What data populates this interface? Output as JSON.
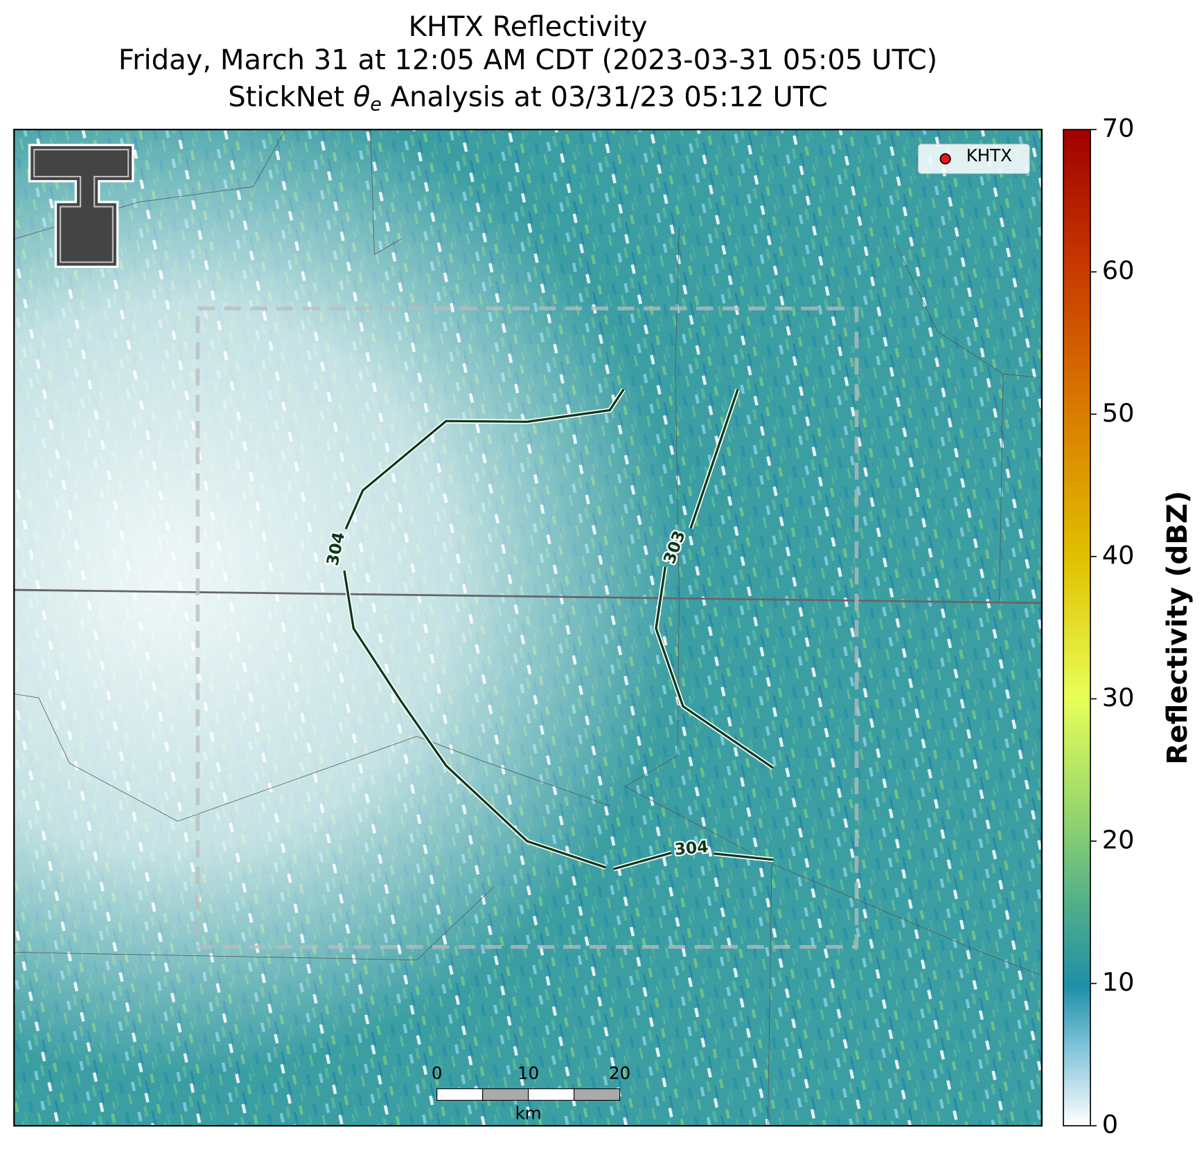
{
  "title": {
    "line1": "KHTX Reflectivity",
    "line2": "Friday, March 31 at 12:05 AM CDT (2023-03-31 05:05 UTC)",
    "line3": {
      "before": "StickNet",
      "symbol": "θ",
      "subscript": "e",
      "after": "Analysis at 03/31/23 05:12 UTC"
    }
  },
  "legend": {
    "label": "KHTX",
    "color": "#e8141c",
    "loc": "upper right"
  },
  "colorbar": {
    "label": "Reflectivity (dBZ)",
    "lim": [
      0,
      70
    ],
    "ticks": [
      0,
      10,
      20,
      30,
      40,
      50,
      60,
      70
    ]
  },
  "contours": [
    {
      "value": 304
    },
    {
      "value": 303
    }
  ],
  "scale_bar": {
    "ticks": [
      0,
      10,
      20
    ],
    "unit": "km"
  }
}
